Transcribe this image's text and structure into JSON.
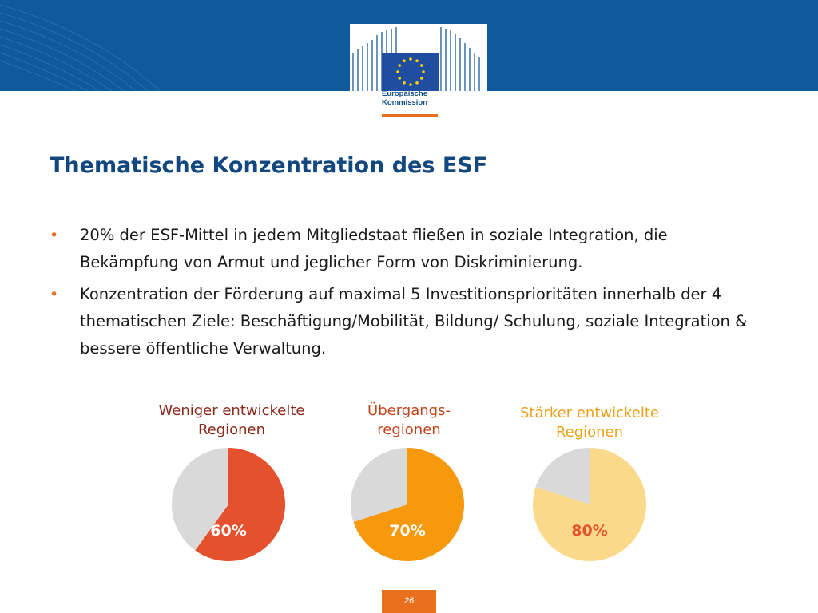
{
  "header": {
    "brand_line_1": "Europäische",
    "brand_line_2": "Kommission"
  },
  "title": "Thematische Konzentration des ESF",
  "bullets": [
    {
      "text": "20% der ESF-Mittel in jedem Mitgliedstaat fließen in soziale Integration, die Bekämpfung von Armut und jeglicher Form von Diskriminierung."
    },
    {
      "text": "Konzentration der Förderung auf maximal 5 Investitionsprioritäten innerhalb der 4 thematischen Ziele: Beschäftigung/Mobilität, Bildung/ Schulung, soziale Integration & bessere öffentliche Verwaltung."
    }
  ],
  "colors": {
    "band": "#0e5a9c",
    "accent": "#e86f1c",
    "title": "#12487f",
    "pie_remainder": "#d9d9d9"
  },
  "chart_data": [
    {
      "type": "pie",
      "title_lines": [
        "Weniger entwickelte",
        "Regionen"
      ],
      "title_color": "#8b2a1c",
      "slices": [
        {
          "value": 60,
          "color": "#e5512c"
        },
        {
          "value": 40,
          "color": "#d9d9d9"
        }
      ],
      "data_label": "60%",
      "data_label_color": "#ffffff"
    },
    {
      "type": "pie",
      "title_lines": [
        "Übergangs-",
        "regionen"
      ],
      "title_color": "#c0461b",
      "slices": [
        {
          "value": 70,
          "color": "#f7990c"
        },
        {
          "value": 30,
          "color": "#d9d9d9"
        }
      ],
      "data_label": "70%",
      "data_label_color": "#ffffff"
    },
    {
      "type": "pie",
      "title_lines": [
        "Stärker entwickelte",
        "Regionen"
      ],
      "title_color": "#e8a21a",
      "slices": [
        {
          "value": 80,
          "color": "#fbd98a"
        },
        {
          "value": 20,
          "color": "#d9d9d9"
        }
      ],
      "data_label": "80%",
      "data_label_color": "#e5512c"
    }
  ],
  "footer": {
    "page_number": "26"
  }
}
